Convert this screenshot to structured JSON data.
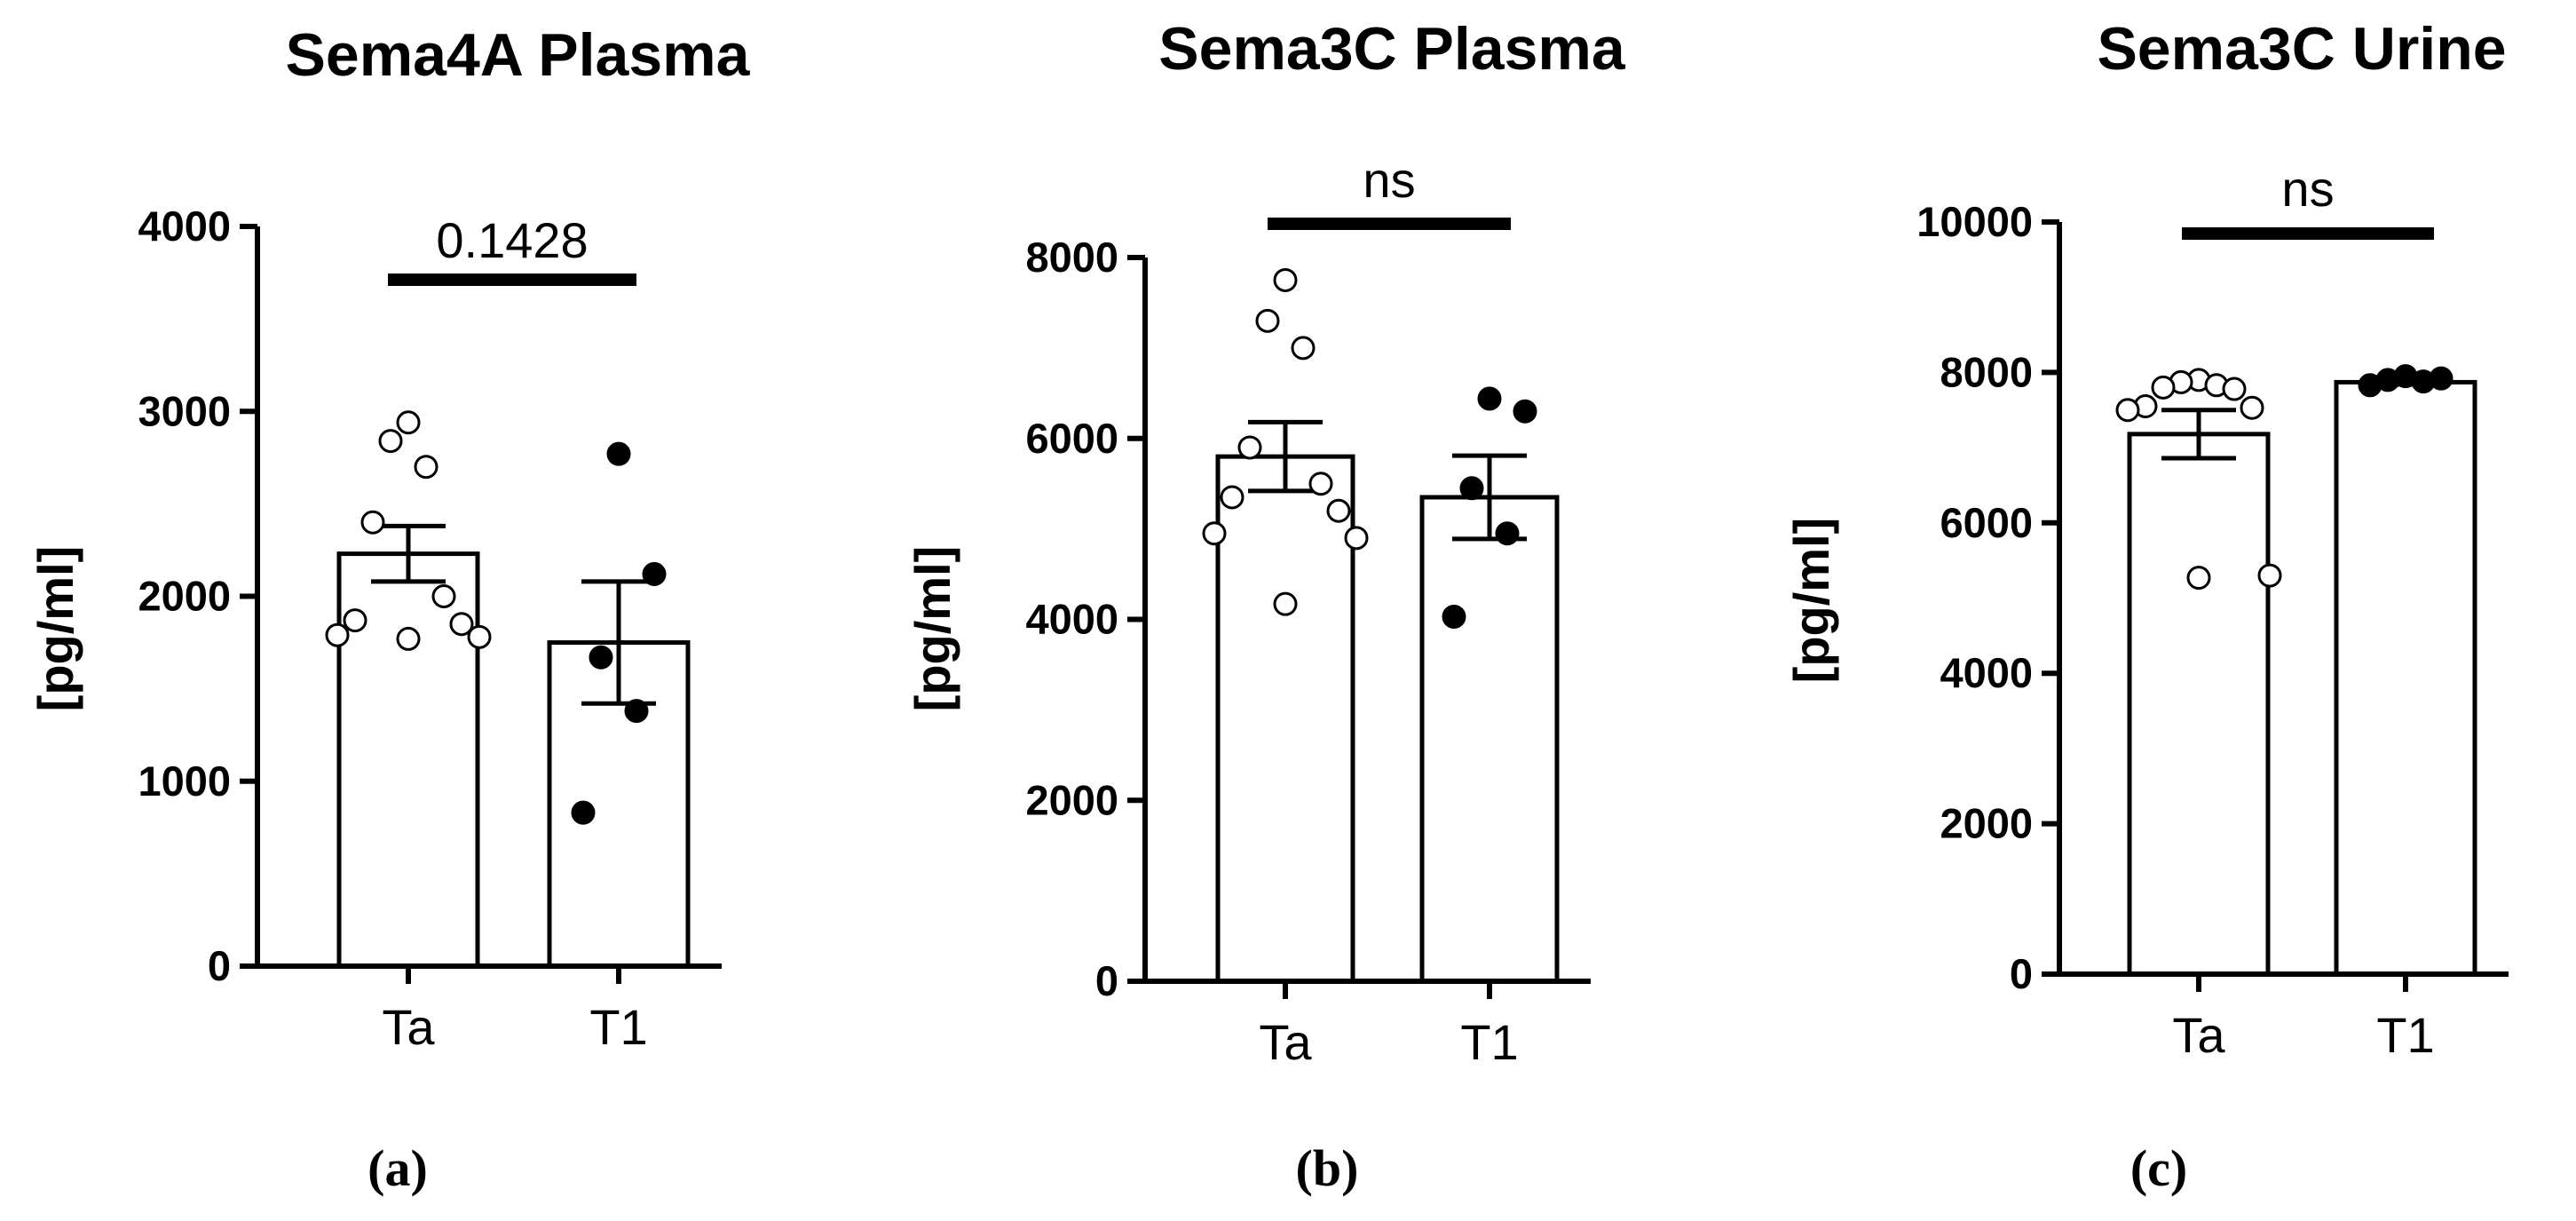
{
  "chart_data": [
    {
      "panel": "a",
      "type": "bar",
      "title": "Sema4A Plasma",
      "ylabel": "[pg/ml]",
      "ylim": [
        0,
        4000
      ],
      "yticks": [
        "0",
        "1000",
        "2000",
        "3000",
        "4000"
      ],
      "categories": [
        "Ta",
        "T1"
      ],
      "means": [
        2230,
        1750
      ],
      "sem": [
        150,
        330
      ],
      "points": [
        [
          2940,
          2840,
          2700,
          2400,
          2000,
          1870,
          1850,
          1790,
          1780,
          1770
        ],
        [
          2770,
          2120,
          1670,
          1380,
          830
        ]
      ],
      "comparison": "0.1428"
    },
    {
      "panel": "b",
      "type": "bar",
      "title": "Sema3C Plasma",
      "ylabel": "[pg/ml]",
      "ylim": [
        0,
        8000
      ],
      "yticks": [
        "0",
        "2000",
        "4000",
        "6000",
        "8000"
      ],
      "categories": [
        "Ta",
        "T1"
      ],
      "means": [
        5800,
        5350
      ],
      "sem": [
        380,
        460
      ],
      "points": [
        [
          7750,
          7300,
          7000,
          5900,
          5500,
          5350,
          5200,
          4950,
          4900,
          4170
        ],
        [
          6440,
          6300,
          5450,
          4950,
          4030
        ]
      ],
      "comparison": "ns"
    },
    {
      "panel": "c",
      "type": "bar",
      "title": "Sema3C Urine",
      "ylabel": "[pg/ml]",
      "ylim": [
        0,
        10000
      ],
      "yticks": [
        "0",
        "2000",
        "4000",
        "6000",
        "8000",
        "10000"
      ],
      "categories": [
        "Ta",
        "T1"
      ],
      "means": [
        7180,
        7870
      ],
      "sem": [
        320,
        30
      ],
      "points": [
        [
          7900,
          7870,
          7830,
          7800,
          7780,
          7550,
          7530,
          7500,
          5300,
          5270
        ],
        [
          7950,
          7920,
          7900,
          7880,
          7830
        ]
      ],
      "comparison": "ns"
    }
  ],
  "panel_labels": [
    "(a)",
    "(b)",
    "(c)"
  ]
}
